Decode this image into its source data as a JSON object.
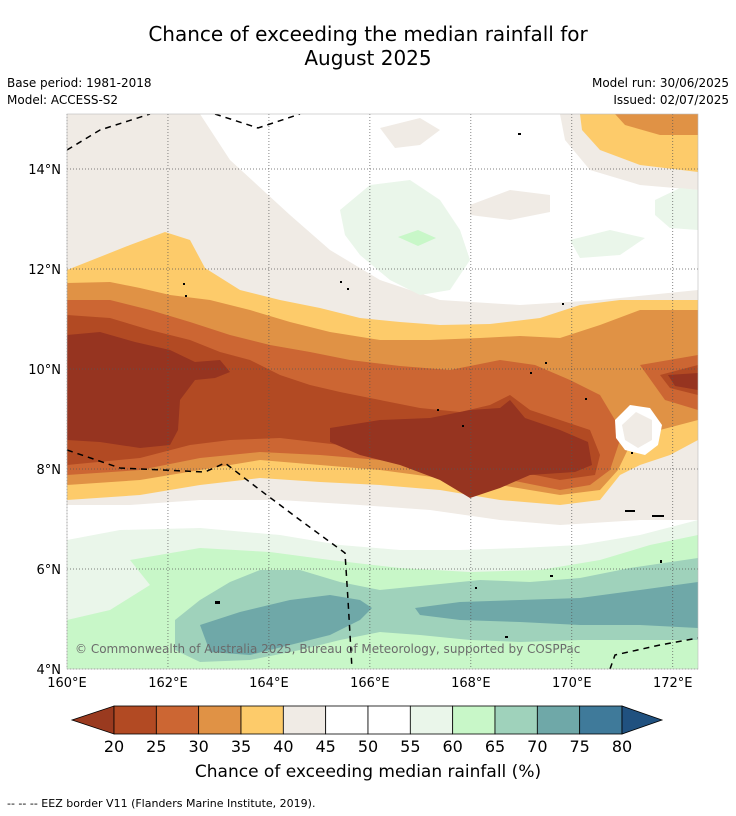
{
  "title_line1": "Chance of exceeding the median rainfall for",
  "title_line2": "August 2025",
  "base_period": "Base period: 1981-2018",
  "model": "Model: ACCESS-S2",
  "model_run": "Model run: 30/06/2025",
  "issued": "Issued: 02/07/2025",
  "copyright": "© Commonwealth of Australia 2025, Bureau of Meteorology, supported by COSPPac",
  "footnote": "--  --  -- EEZ border V11 (Flanders Marine Institute, 2019).",
  "colorbar": {
    "title": "Chance of exceeding median rainfall (%)",
    "ticks": [
      "20",
      "25",
      "30",
      "35",
      "40",
      "45",
      "50",
      "55",
      "60",
      "65",
      "70",
      "75",
      "80"
    ],
    "colors": [
      "#9a3a1f",
      "#b24a23",
      "#cc6633",
      "#e09245",
      "#fdcb6a",
      "#f0ebe5",
      "#ffffff",
      "#ffffff",
      "#eaf6ea",
      "#c8f7c8",
      "#9fd2bb",
      "#6fa8a8",
      "#3f7a9a",
      "#20517f"
    ]
  },
  "chart_data": {
    "type": "heatmap",
    "lon_ticks": [
      "160°E",
      "162°E",
      "164°E",
      "166°E",
      "168°E",
      "170°E",
      "172°E"
    ],
    "lat_ticks": [
      "14°N",
      "12°N",
      "10°N",
      "8°N",
      "6°N",
      "4°N"
    ],
    "lon_values": [
      160,
      162,
      164,
      166,
      168,
      170,
      172
    ],
    "lat_values": [
      14,
      12,
      10,
      8,
      6,
      4
    ],
    "lon_range": [
      160,
      172.5
    ],
    "lat_range": [
      4,
      15.1
    ],
    "grid": true,
    "contour_levels": [
      20,
      25,
      30,
      35,
      40,
      45,
      50,
      55,
      60,
      65,
      70,
      75,
      80
    ]
  }
}
